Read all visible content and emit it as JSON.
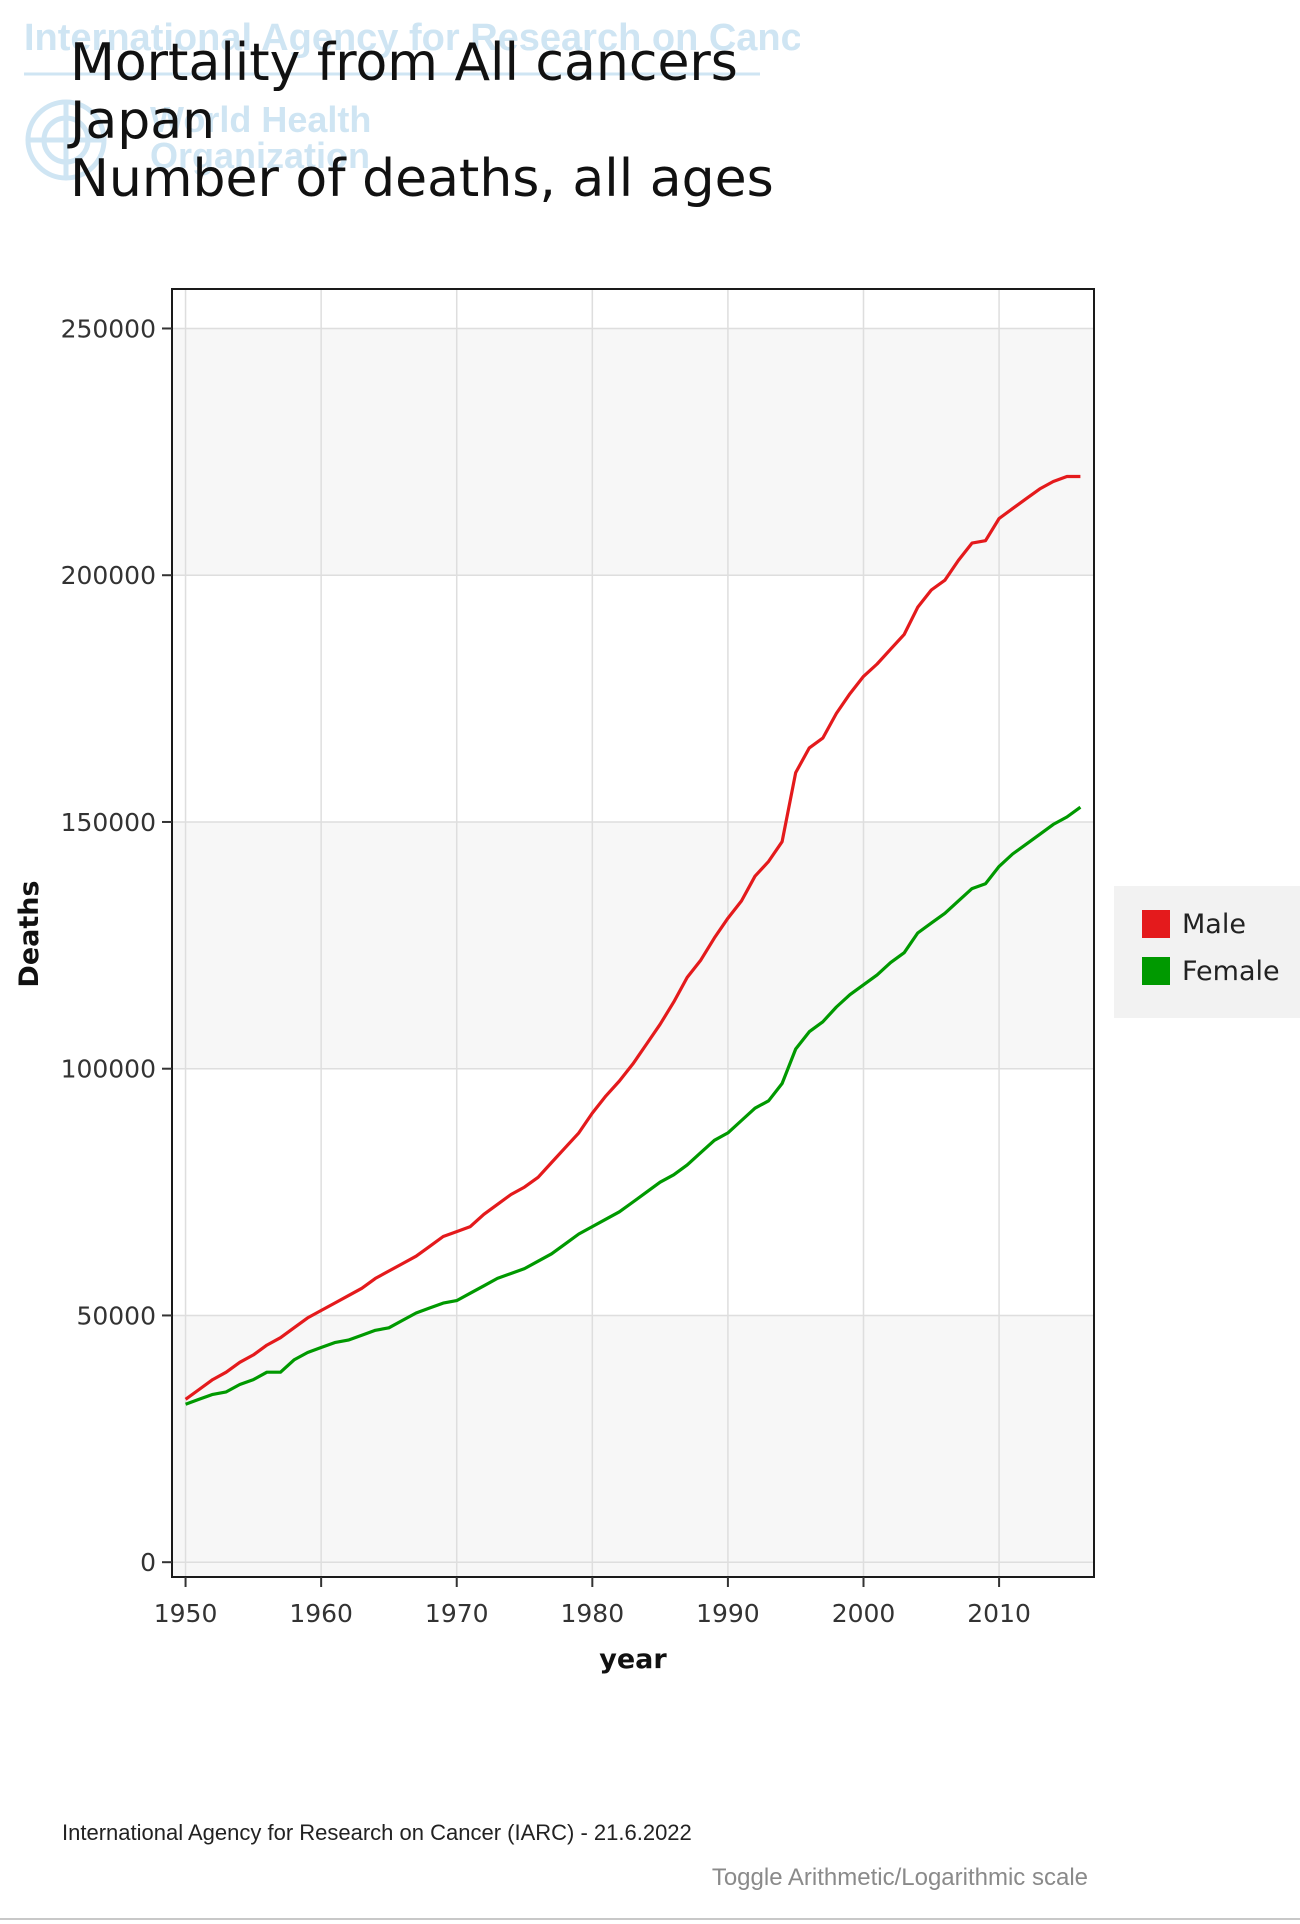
{
  "watermark": {
    "agency": "International Agency for Research on Cancer",
    "who_line1": "World Health",
    "who_line2": "Organization"
  },
  "title_lines": [
    "Mortality from All cancers",
    "Japan",
    "Number of deaths, all ages"
  ],
  "footer": {
    "source": "International Agency for Research on Cancer (IARC) - 21.6.2022",
    "toggle_link": "Toggle Arithmetic/Logarithmic scale"
  },
  "colors": {
    "male": "#e41a1c",
    "female": "#009900",
    "watermark": "#cfe5f3",
    "panel_band": "#f7f7f7",
    "grid": "#dedede"
  },
  "chart_data": {
    "type": "line",
    "xlabel": "year",
    "ylabel": "Deaths",
    "xlim": [
      1949,
      2017
    ],
    "ylim": [
      -3000,
      258000
    ],
    "x_ticks": [
      1950,
      1960,
      1970,
      1980,
      1990,
      2000,
      2010
    ],
    "y_ticks": [
      0,
      50000,
      100000,
      150000,
      200000,
      250000
    ],
    "legend_position": "right",
    "grid": true,
    "x": [
      1950,
      1951,
      1952,
      1953,
      1954,
      1955,
      1956,
      1957,
      1958,
      1959,
      1960,
      1961,
      1962,
      1963,
      1964,
      1965,
      1966,
      1967,
      1968,
      1969,
      1970,
      1971,
      1972,
      1973,
      1974,
      1975,
      1976,
      1977,
      1978,
      1979,
      1980,
      1981,
      1982,
      1983,
      1984,
      1985,
      1986,
      1987,
      1988,
      1989,
      1990,
      1991,
      1992,
      1993,
      1994,
      1995,
      1996,
      1997,
      1998,
      1999,
      2000,
      2001,
      2002,
      2003,
      2004,
      2005,
      2006,
      2007,
      2008,
      2009,
      2010,
      2011,
      2012,
      2013,
      2014,
      2015,
      2016
    ],
    "series": [
      {
        "name": "Male",
        "values": [
          33000,
          35000,
          37000,
          38500,
          40500,
          42000,
          44000,
          45500,
          47500,
          49500,
          51000,
          52500,
          54000,
          55500,
          57500,
          59000,
          60500,
          62000,
          64000,
          66000,
          67000,
          68000,
          70500,
          72500,
          74500,
          76000,
          78000,
          81000,
          84000,
          87000,
          91000,
          94500,
          97500,
          101000,
          105000,
          109000,
          113500,
          118500,
          122000,
          126500,
          130500,
          134000,
          139000,
          142000,
          146000,
          160000,
          165000,
          167000,
          172000,
          176000,
          179500,
          182000,
          185000,
          188000,
          193500,
          197000,
          199000,
          203000,
          206500,
          207000,
          211500,
          213500,
          215500,
          217500,
          219000,
          220000,
          220000
        ]
      },
      {
        "name": "Female",
        "values": [
          32000,
          33000,
          34000,
          34500,
          36000,
          37000,
          38500,
          38500,
          41000,
          42500,
          43500,
          44500,
          45000,
          46000,
          47000,
          47500,
          49000,
          50500,
          51500,
          52500,
          53000,
          54500,
          56000,
          57500,
          58500,
          59500,
          61000,
          62500,
          64500,
          66500,
          68000,
          69500,
          71000,
          73000,
          75000,
          77000,
          78500,
          80500,
          83000,
          85500,
          87000,
          89500,
          92000,
          93500,
          97000,
          104000,
          107500,
          109500,
          112500,
          115000,
          117000,
          119000,
          121500,
          123500,
          127500,
          129500,
          131500,
          134000,
          136500,
          137500,
          141000,
          143500,
          145500,
          147500,
          149500,
          151000,
          153000
        ]
      }
    ]
  }
}
